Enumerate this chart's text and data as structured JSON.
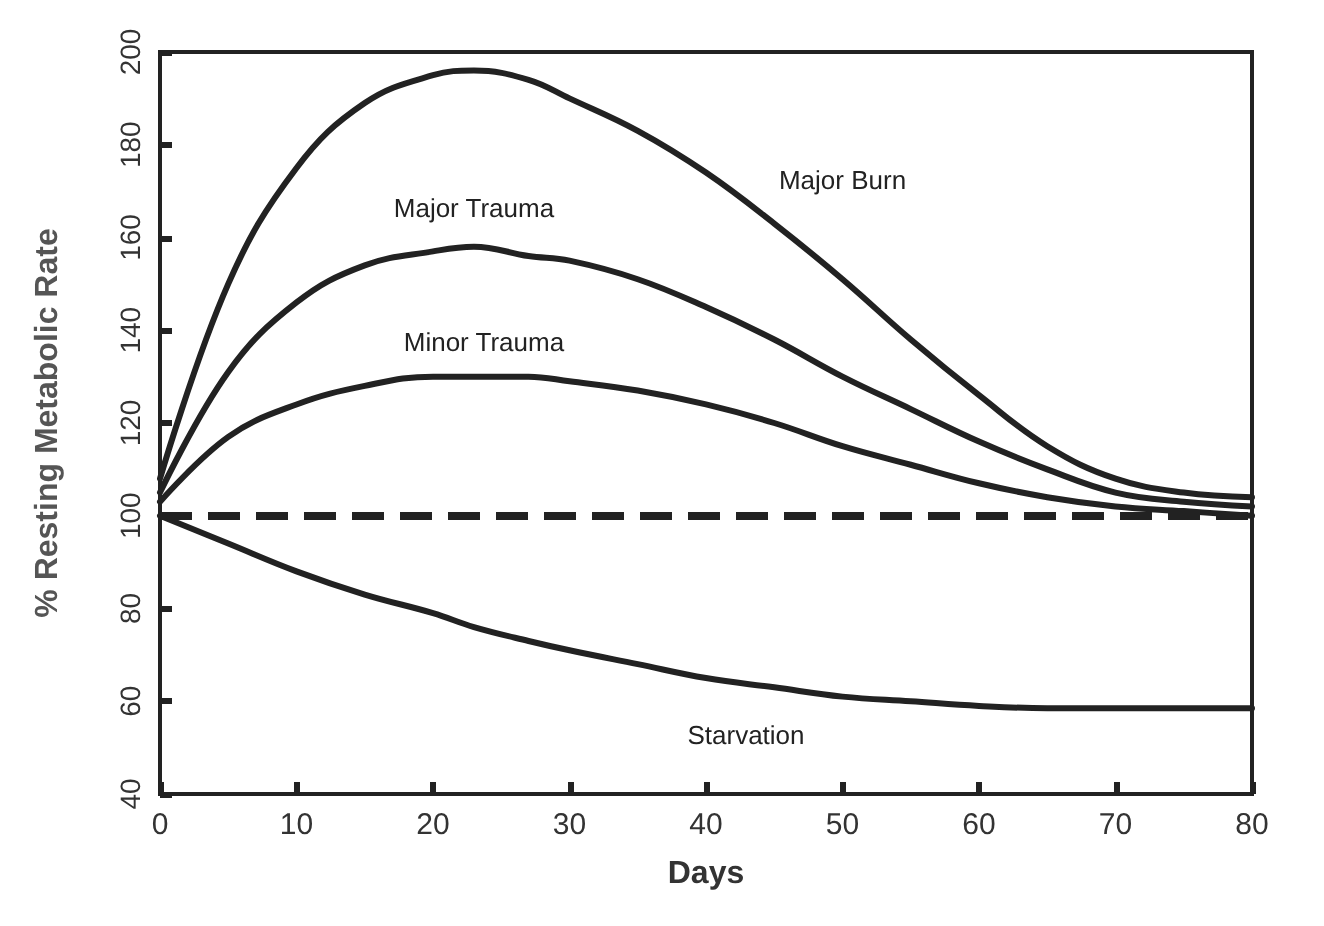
{
  "chart_data": {
    "type": "line",
    "xlabel": "Days",
    "ylabel": "% Resting Metabolic Rate",
    "x": [
      0,
      5,
      10,
      15,
      20,
      23,
      27,
      30,
      35,
      40,
      45,
      50,
      55,
      60,
      65,
      70,
      75,
      80
    ],
    "series": [
      {
        "name": "Major Burn",
        "color": "#222222",
        "values": [
          108,
          150,
          175,
          189,
          195,
          196,
          194,
          190,
          183,
          174,
          163,
          151,
          138,
          126,
          115,
          108,
          105,
          104
        ]
      },
      {
        "name": "Major Trauma",
        "color": "#222222",
        "values": [
          105,
          131,
          146,
          154,
          157,
          158,
          156,
          155,
          151,
          145,
          138,
          130,
          123,
          116,
          110,
          105,
          103,
          102
        ]
      },
      {
        "name": "Minor Trauma",
        "color": "#222222",
        "values": [
          103,
          117,
          124,
          128,
          130,
          130,
          130,
          129,
          127,
          124,
          120,
          115,
          111,
          107,
          104,
          102,
          101,
          100
        ]
      },
      {
        "name": "Starvation",
        "color": "#222222",
        "values": [
          100,
          94,
          88,
          83,
          79,
          76,
          73,
          71,
          68,
          65,
          63,
          61,
          60,
          59,
          58.5,
          58.5,
          58.5,
          58.5
        ]
      }
    ],
    "ref_lines": [
      {
        "axis": "y",
        "value": 100,
        "color": "#222222",
        "line_style": "dashed"
      }
    ],
    "xlim": [
      0,
      80
    ],
    "xticks": [
      0,
      10,
      20,
      30,
      40,
      50,
      60,
      70,
      80
    ],
    "ylim": [
      40,
      200
    ],
    "yticks": [
      40,
      60,
      80,
      100,
      120,
      140,
      160,
      180,
      200
    ],
    "grid": false,
    "legend": false,
    "marker": "none",
    "line_style": "solid"
  }
}
